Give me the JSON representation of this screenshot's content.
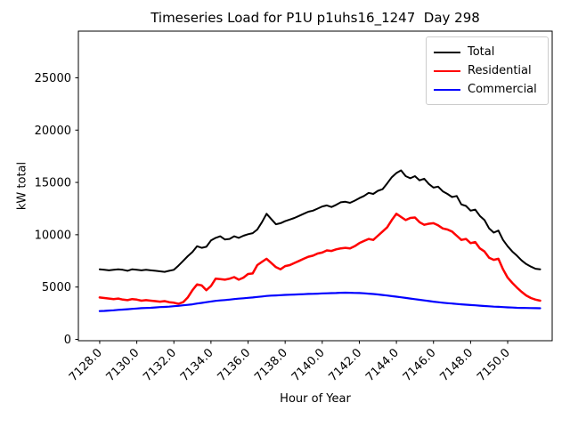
{
  "chart_data": {
    "type": "line",
    "title": "Timeseries Load for P1U p1uhs16_1247  Day 298",
    "xlabel": "Hour of Year",
    "ylabel": "kW total",
    "grid": false,
    "legend_position": "upper right",
    "xlim": [
      7126.85,
      7152.4
    ],
    "ylim": [
      -130,
      29460
    ],
    "x_ticks": [
      7128,
      7130,
      7132,
      7134,
      7136,
      7138,
      7140,
      7142,
      7144,
      7146,
      7148,
      7150
    ],
    "x_tick_labels": [
      "7128.0",
      "7130.0",
      "7132.0",
      "7134.0",
      "7136.0",
      "7138.0",
      "7140.0",
      "7142.0",
      "7144.0",
      "7146.0",
      "7148.0",
      "7150.0"
    ],
    "y_ticks": [
      0,
      5000,
      10000,
      15000,
      20000,
      25000
    ],
    "y_tick_labels": [
      "0",
      "5000",
      "10000",
      "15000",
      "20000",
      "25000"
    ],
    "x_start": 7128.0,
    "x_step": 0.25,
    "series": [
      {
        "name": "Total",
        "color": "#000000",
        "linewidth": 2,
        "values": [
          6700,
          6650,
          6600,
          6650,
          6700,
          6650,
          6550,
          6700,
          6650,
          6600,
          6650,
          6600,
          6550,
          6500,
          6450,
          6550,
          6650,
          7050,
          7500,
          7950,
          8350,
          8900,
          8750,
          8850,
          9450,
          9700,
          9850,
          9550,
          9600,
          9850,
          9700,
          9900,
          10050,
          10150,
          10500,
          11200,
          12000,
          11500,
          11000,
          11100,
          11300,
          11450,
          11600,
          11800,
          12000,
          12200,
          12300,
          12500,
          12700,
          12800,
          12650,
          12850,
          13100,
          13150,
          13050,
          13250,
          13500,
          13700,
          14000,
          13900,
          14200,
          14350,
          14900,
          15500,
          15900,
          16150,
          15600,
          15400,
          15600,
          15200,
          15350,
          14850,
          14500,
          14600,
          14150,
          13900,
          13600,
          13700,
          12900,
          12750,
          12300,
          12400,
          11800,
          11400,
          10600,
          10200,
          10400,
          9500,
          8900,
          8400,
          8000,
          7550,
          7200,
          6950,
          6750,
          6700
        ]
      },
      {
        "name": "Residential",
        "color": "#ff0000",
        "linewidth": 2.5,
        "values": [
          4000,
          3950,
          3900,
          3850,
          3900,
          3800,
          3750,
          3850,
          3800,
          3700,
          3750,
          3700,
          3650,
          3600,
          3650,
          3550,
          3500,
          3400,
          3550,
          4000,
          4700,
          5250,
          5150,
          4700,
          5100,
          5800,
          5750,
          5700,
          5800,
          5950,
          5700,
          5900,
          6250,
          6300,
          7100,
          7400,
          7700,
          7300,
          6900,
          6700,
          7000,
          7100,
          7300,
          7500,
          7700,
          7900,
          8000,
          8200,
          8300,
          8500,
          8450,
          8600,
          8700,
          8750,
          8700,
          8900,
          9200,
          9400,
          9600,
          9500,
          9900,
          10300,
          10700,
          11400,
          12000,
          11700,
          11400,
          11600,
          11650,
          11200,
          10950,
          11050,
          11100,
          10900,
          10600,
          10500,
          10300,
          9900,
          9500,
          9600,
          9200,
          9300,
          8700,
          8400,
          7800,
          7600,
          7700,
          6700,
          5900,
          5400,
          4950,
          4550,
          4200,
          3950,
          3800,
          3700
        ]
      },
      {
        "name": "Commercial",
        "color": "#0000ff",
        "linewidth": 2.2,
        "values": [
          2700,
          2720,
          2750,
          2780,
          2820,
          2850,
          2880,
          2910,
          2950,
          2980,
          3000,
          3020,
          3050,
          3080,
          3100,
          3130,
          3170,
          3200,
          3250,
          3300,
          3350,
          3420,
          3480,
          3550,
          3620,
          3680,
          3720,
          3760,
          3800,
          3850,
          3890,
          3930,
          3970,
          4000,
          4050,
          4100,
          4150,
          4180,
          4200,
          4220,
          4250,
          4270,
          4280,
          4300,
          4320,
          4340,
          4350,
          4370,
          4390,
          4400,
          4420,
          4430,
          4450,
          4460,
          4450,
          4440,
          4430,
          4400,
          4370,
          4330,
          4290,
          4240,
          4190,
          4130,
          4080,
          4020,
          3960,
          3900,
          3840,
          3780,
          3720,
          3660,
          3600,
          3550,
          3500,
          3460,
          3420,
          3380,
          3350,
          3310,
          3280,
          3250,
          3220,
          3190,
          3160,
          3130,
          3110,
          3080,
          3060,
          3040,
          3020,
          3010,
          3000,
          2990,
          2980,
          2970
        ]
      }
    ]
  }
}
